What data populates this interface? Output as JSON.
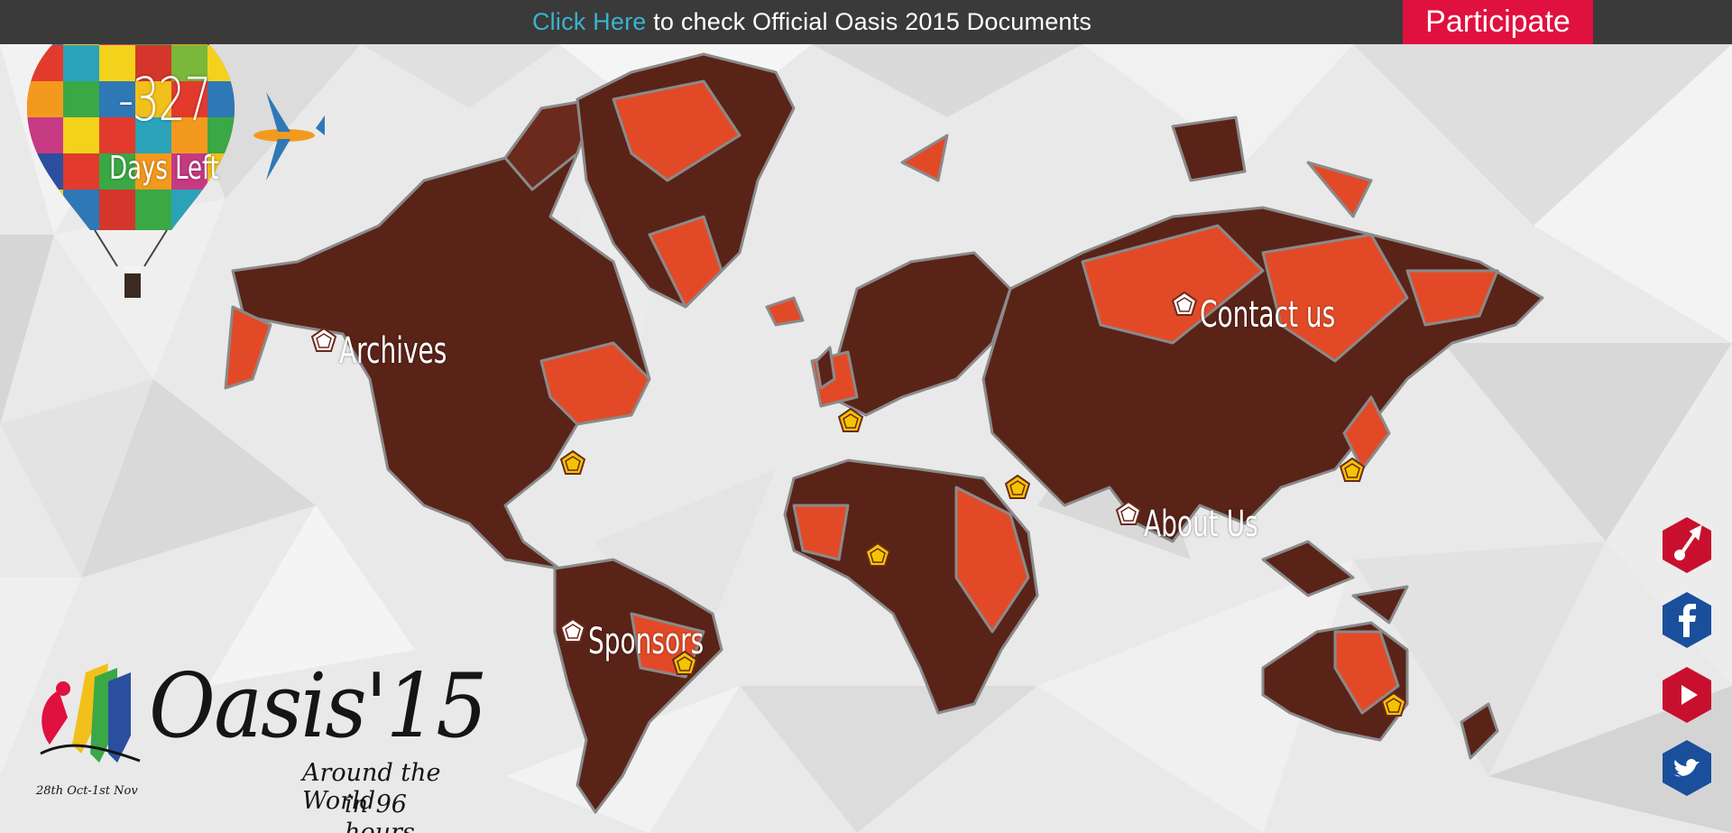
{
  "topbar": {
    "link_text": "Click Here",
    "message": " to check Official Oasis 2015 Documents",
    "participate_label": "Participate"
  },
  "countdown": {
    "value": "-327",
    "label": "Days Left"
  },
  "nav": {
    "archives": "Archives",
    "contact": "Contact us",
    "about": "About Us",
    "sponsors": "Sponsors"
  },
  "social": [
    "guitar-icon",
    "facebook-icon",
    "youtube-icon",
    "twitter-icon"
  ],
  "logo": {
    "title": "Oasis'15",
    "tagline_line1": "Around the World",
    "tagline_line2": "in 96 hours",
    "dates": "28th Oct-1st Nov"
  },
  "colors": {
    "topbar_bg": "#3a3a3a",
    "link": "#3ab3cf",
    "participate_bg": "#e0103f",
    "map_dark": "#5c2318",
    "map_bright": "#e54a28",
    "marker_yellow": "#f5c400",
    "social_red": "#c8102e",
    "social_blue": "#1a4f9c"
  }
}
